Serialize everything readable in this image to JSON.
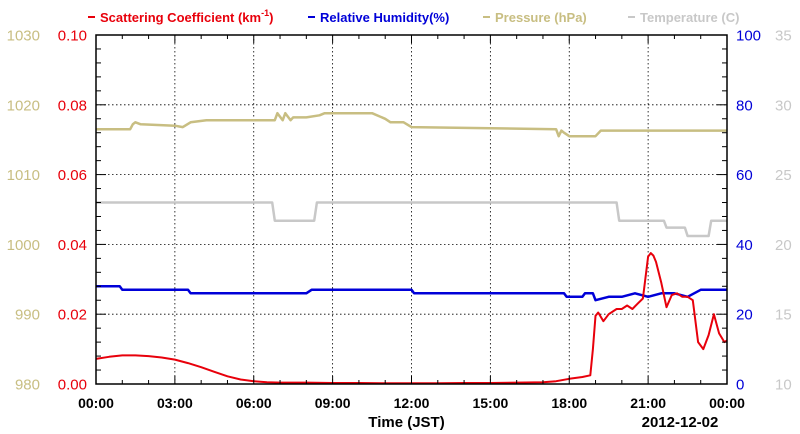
{
  "chart_data": {
    "type": "line",
    "legend": {
      "items": [
        {
          "id": "scat",
          "label": "Scattering Coefficient (km",
          "sup": "-1",
          "close": ")",
          "color": "#e8000b"
        },
        {
          "id": "rh",
          "label": "Relative Humidity(%)",
          "color": "#0000d8"
        },
        {
          "id": "pres",
          "label": "Pressure (hPa)",
          "color": "#c8be82"
        },
        {
          "id": "temp",
          "label": "Temperature (C)",
          "color": "#c8c8c8"
        }
      ]
    },
    "xlabel": "Time (JST)",
    "date_label": "2012-12-02",
    "x_tick_labels": [
      "00:00",
      "03:00",
      "06:00",
      "09:00",
      "12:00",
      "15:00",
      "18:00",
      "21:00",
      "00:00"
    ],
    "x_range_hours": [
      0,
      24
    ],
    "grid": true,
    "axes": {
      "scattering": {
        "ylim": [
          0.0,
          0.1
        ],
        "ticks": [
          "0.00",
          "0.02",
          "0.04",
          "0.06",
          "0.08",
          "0.10"
        ],
        "color": "#e8000b"
      },
      "pressure": {
        "ylim": [
          980,
          1030
        ],
        "ticks": [
          "980",
          "990",
          "1000",
          "1010",
          "1020",
          "1030"
        ],
        "color": "#c8be82"
      },
      "humidity": {
        "ylim": [
          0,
          100
        ],
        "ticks": [
          "0",
          "20",
          "40",
          "60",
          "80",
          "100"
        ],
        "color": "#0000d8"
      },
      "temperature": {
        "ylim": [
          10,
          35
        ],
        "ticks": [
          "10",
          "15",
          "20",
          "25",
          "30",
          "35"
        ],
        "color": "#c8c8c8"
      }
    },
    "series": [
      {
        "name": "Scattering Coefficient",
        "axis": "scattering",
        "color": "#e8000b",
        "x": [
          0,
          0.5,
          1,
          1.5,
          2,
          2.5,
          3,
          3.5,
          4,
          4.5,
          5,
          5.5,
          6,
          6.5,
          7,
          8,
          9,
          10,
          11,
          12,
          13,
          14,
          15,
          16,
          17,
          17.5,
          18,
          18.5,
          18.8,
          18.9,
          19.0,
          19.1,
          19.3,
          19.5,
          19.8,
          20.0,
          20.2,
          20.4,
          20.6,
          20.8,
          21.0,
          21.1,
          21.2,
          21.3,
          21.5,
          21.7,
          21.9,
          22.1,
          22.3,
          22.5,
          22.7,
          22.9,
          23.1,
          23.3,
          23.5,
          23.7,
          23.9,
          24.0
        ],
        "values": [
          0.0072,
          0.0078,
          0.0082,
          0.0082,
          0.008,
          0.0076,
          0.007,
          0.006,
          0.0048,
          0.0035,
          0.0022,
          0.0013,
          0.0008,
          0.0005,
          0.0004,
          0.0004,
          0.0003,
          0.0003,
          0.0002,
          0.0002,
          0.0002,
          0.0003,
          0.0003,
          0.0004,
          0.0005,
          0.0008,
          0.0015,
          0.002,
          0.0025,
          0.01,
          0.0195,
          0.0205,
          0.018,
          0.02,
          0.0215,
          0.0215,
          0.0225,
          0.0215,
          0.023,
          0.0245,
          0.0365,
          0.0375,
          0.0368,
          0.035,
          0.029,
          0.022,
          0.0255,
          0.026,
          0.025,
          0.025,
          0.024,
          0.012,
          0.01,
          0.014,
          0.02,
          0.0145,
          0.012,
          0.0125
        ]
      },
      {
        "name": "Relative Humidity",
        "axis": "humidity",
        "color": "#0000d8",
        "x": [
          0,
          0.9,
          1.0,
          3.5,
          3.6,
          8.0,
          8.2,
          12.0,
          12.1,
          17.8,
          17.9,
          18.5,
          18.6,
          18.9,
          19.0,
          19.5,
          20.0,
          20.5,
          21.0,
          21.5,
          22.0,
          22.5,
          23.0,
          23.5,
          24.0
        ],
        "values": [
          28,
          28,
          27,
          27,
          26,
          26,
          27,
          27,
          26,
          26,
          25,
          25,
          26,
          26,
          24,
          25,
          25,
          26,
          25,
          26,
          26,
          25,
          27,
          27,
          27
        ]
      },
      {
        "name": "Pressure",
        "axis": "pressure",
        "color": "#c8be82",
        "x": [
          0,
          1.3,
          1.4,
          1.5,
          1.7,
          3.0,
          3.3,
          3.6,
          4.2,
          6.8,
          6.9,
          7.1,
          7.2,
          7.4,
          7.5,
          8.0,
          8.5,
          8.7,
          9.5,
          10.5,
          11.0,
          11.2,
          11.7,
          12.0,
          17.5,
          17.6,
          17.7,
          17.8,
          18.0,
          19.0,
          19.2,
          24.0
        ],
        "values": [
          1016.5,
          1016.5,
          1017.2,
          1017.5,
          1017.2,
          1017.0,
          1016.8,
          1017.5,
          1017.8,
          1017.8,
          1018.8,
          1017.8,
          1018.8,
          1017.8,
          1018.2,
          1018.2,
          1018.5,
          1018.8,
          1018.8,
          1018.8,
          1018.0,
          1017.5,
          1017.5,
          1016.8,
          1016.5,
          1015.5,
          1016.3,
          1016.0,
          1015.5,
          1015.5,
          1016.3,
          1016.3
        ]
      },
      {
        "name": "Temperature",
        "axis": "temperature",
        "color": "#c8c8c8",
        "x": [
          0,
          6.7,
          6.8,
          8.3,
          8.4,
          19.8,
          19.9,
          21.6,
          21.7,
          22.4,
          22.5,
          23.3,
          23.4,
          24.0
        ],
        "values": [
          23.0,
          23.0,
          21.7,
          21.7,
          23.0,
          23.0,
          21.7,
          21.7,
          21.2,
          21.2,
          20.6,
          20.6,
          21.7,
          21.7
        ]
      }
    ]
  }
}
